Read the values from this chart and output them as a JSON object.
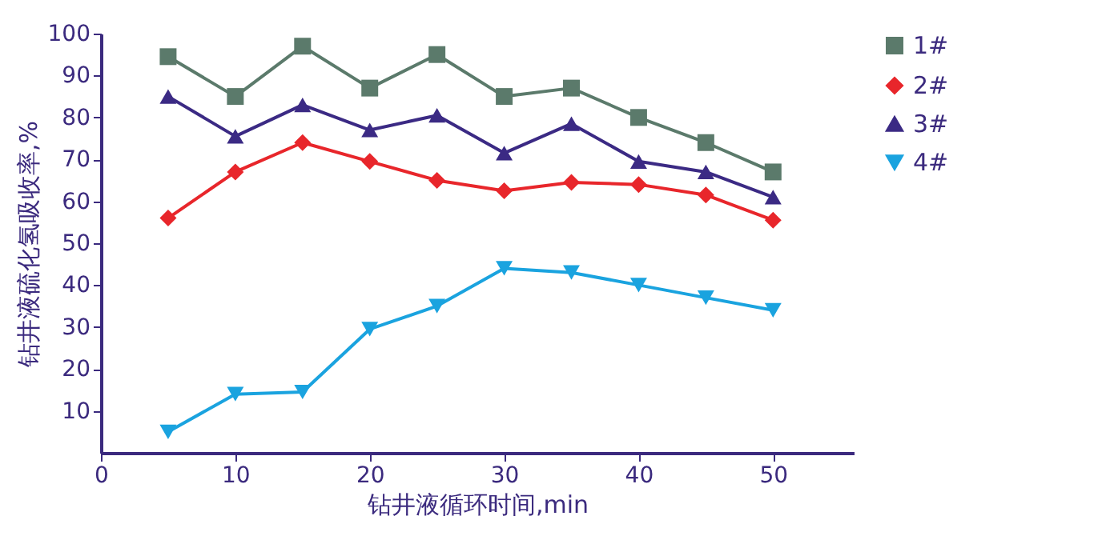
{
  "chart_data": {
    "type": "line",
    "xlabel": "钻井液循环时间,min",
    "ylabel": "钻井液硫化氢吸收率,%",
    "x": [
      5,
      10,
      15,
      20,
      25,
      30,
      35,
      40,
      45,
      50
    ],
    "series": [
      {
        "name": "1#",
        "color": "#5b7a6b",
        "marker": "square",
        "values": [
          94.5,
          85,
          97,
          87,
          95,
          85,
          87,
          80,
          74,
          67
        ]
      },
      {
        "name": "2#",
        "color": "#e8262b",
        "marker": "diamond",
        "values": [
          56,
          67,
          74,
          69.5,
          65,
          62.5,
          64.5,
          64,
          61.5,
          55.5
        ]
      },
      {
        "name": "3#",
        "color": "#3b2a84",
        "marker": "triangle",
        "values": [
          85,
          75.5,
          83,
          77,
          80.5,
          71.5,
          78.5,
          69.5,
          67,
          61
        ]
      },
      {
        "name": "4#",
        "color": "#1aa3df",
        "marker": "triangle-down",
        "values": [
          5,
          14,
          14.5,
          29.5,
          35,
          44,
          43,
          40,
          37,
          34
        ]
      }
    ],
    "xlim": [
      0,
      56
    ],
    "xticks": [
      0,
      10,
      20,
      30,
      40,
      50
    ],
    "ylim": [
      0,
      100
    ],
    "yticks": [
      10,
      20,
      30,
      40,
      50,
      60,
      70,
      80,
      90,
      100
    ],
    "grid": false,
    "legend": "top right",
    "line_style": "solid"
  }
}
